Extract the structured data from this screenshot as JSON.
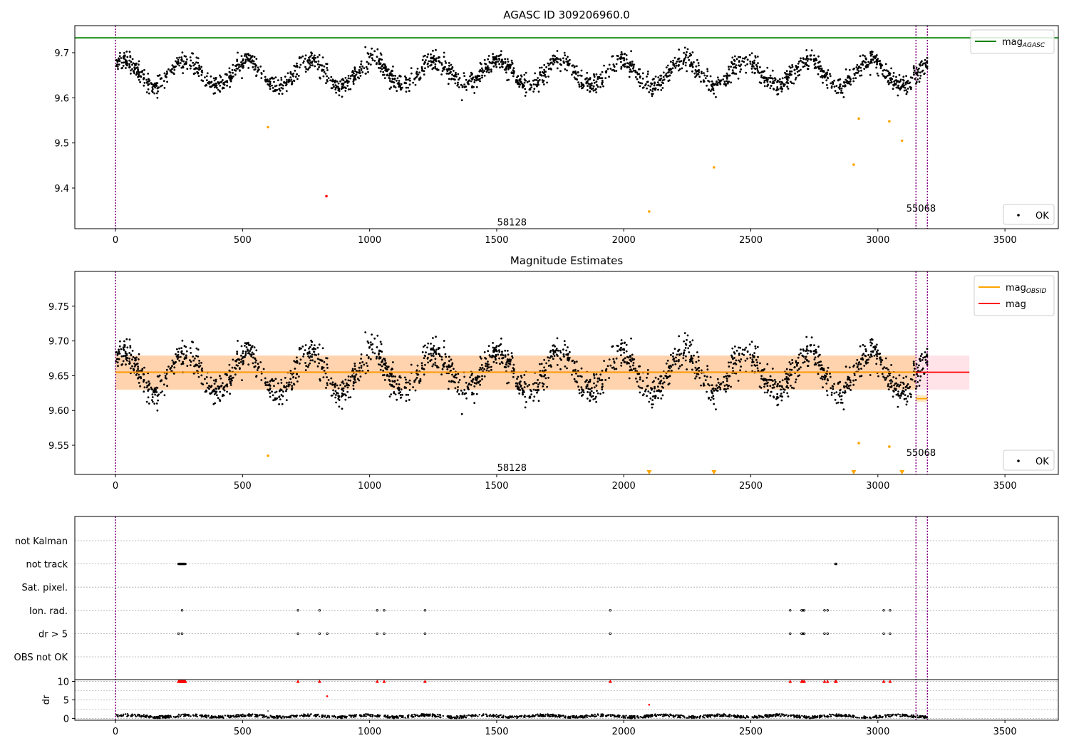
{
  "chart_data": [
    {
      "type": "scatter",
      "title": "AGASC ID 309206960.0",
      "xlim": [
        -160,
        3710
      ],
      "ylim": [
        9.31,
        9.76
      ],
      "xticks": [
        0,
        500,
        1000,
        1500,
        2000,
        2500,
        3000,
        3500
      ],
      "yticks": [
        9.4,
        9.5,
        9.6,
        9.7
      ],
      "ytick_labels": [
        "9.4",
        "9.5",
        "9.6",
        "9.7"
      ],
      "xlabel": "",
      "ylabel": "",
      "grid": false,
      "hlines": [
        {
          "name": "mag_AGASC",
          "y": 9.733,
          "color": "#008000"
        }
      ],
      "vlines": [
        0,
        3150,
        3195
      ],
      "vline_color": "#800080",
      "obsid_labels": [
        {
          "text": "58128",
          "x": 1560,
          "y": 9.325
        },
        {
          "text": "55068",
          "x": 3170,
          "y": 9.356
        }
      ],
      "ok_signal": {
        "mean": 9.655,
        "amplitude": 0.028,
        "period": 245,
        "phase": 215,
        "scatter": 0.011,
        "x_start": 0,
        "x_end": 3195,
        "n": 2200,
        "color": "#000000"
      },
      "extra_points": [
        {
          "x": 600,
          "y": 9.535,
          "color": "#ffa500"
        },
        {
          "x": 830,
          "y": 9.382,
          "color": "#ff0000"
        },
        {
          "x": 2100,
          "y": 9.348,
          "color": "#ffa500"
        },
        {
          "x": 2355,
          "y": 9.446,
          "color": "#ffa500"
        },
        {
          "x": 2905,
          "y": 9.452,
          "color": "#ffa500"
        },
        {
          "x": 2925,
          "y": 9.554,
          "color": "#ffa500"
        },
        {
          "x": 3045,
          "y": 9.548,
          "color": "#ffa500"
        },
        {
          "x": 3095,
          "y": 9.505,
          "color": "#ffa500"
        }
      ],
      "legend": {
        "placement": "top-right",
        "entries": [
          {
            "label": "mag",
            "sub": "AGASC",
            "color": "#008000"
          }
        ]
      },
      "legend2": {
        "placement": "bottom-right",
        "entries": [
          {
            "label": "OK",
            "color": "#000000"
          }
        ]
      }
    },
    {
      "type": "scatter",
      "title": "Magnitude Estimates",
      "xlim": [
        -160,
        3710
      ],
      "ylim": [
        9.508,
        9.8
      ],
      "xticks": [
        0,
        500,
        1000,
        1500,
        2000,
        2500,
        3000,
        3500
      ],
      "yticks": [
        9.55,
        9.6,
        9.65,
        9.7,
        9.75
      ],
      "ytick_labels": [
        "9.55",
        "9.60",
        "9.65",
        "9.70",
        "9.75"
      ],
      "xlabel": "",
      "ylabel": "",
      "grid": false,
      "vlines": [
        0,
        3150,
        3195
      ],
      "vline_color": "#800080",
      "mag_line": {
        "x_start": 0,
        "x_end": 3195,
        "y": 9.655,
        "color": "#ff0000"
      },
      "mag_band": {
        "x_start": 0,
        "x_end": 3360,
        "y_low": 9.63,
        "y_high": 9.679,
        "color": "#ffc0cb"
      },
      "obsid_segments": [
        {
          "x_start": 0,
          "x_end": 3150,
          "y": 9.655,
          "low": 9.63,
          "high": 9.679
        },
        {
          "x_start": 3150,
          "x_end": 3195,
          "y": 9.617,
          "low": 9.612,
          "high": 9.622
        }
      ],
      "obsid_color": "#ffa500",
      "obsid_labels": [
        {
          "text": "58128",
          "x": 1560,
          "y": 9.518
        },
        {
          "text": "55068",
          "x": 3170,
          "y": 9.54
        }
      ],
      "ok_signal": {
        "mean": 9.655,
        "amplitude": 0.028,
        "period": 245,
        "phase": 215,
        "scatter": 0.011,
        "x_start": 0,
        "x_end": 3195,
        "n": 2200,
        "color": "#000000"
      },
      "extra_points": [
        {
          "x": 600,
          "y": 9.535,
          "color": "#ffa500"
        },
        {
          "x": 2925,
          "y": 9.553,
          "color": "#ffa500"
        },
        {
          "x": 3045,
          "y": 9.548,
          "color": "#ffa500"
        }
      ],
      "offscale_markers": [
        2100,
        2355,
        2905,
        3095
      ],
      "legend": {
        "placement": "top-right",
        "entries": [
          {
            "label": "mag",
            "sub": "OBSID",
            "color": "#ffa500"
          },
          {
            "label": "mag",
            "sub": "",
            "color": "#ff0000"
          }
        ]
      },
      "legend2": {
        "placement": "bottom-right",
        "entries": [
          {
            "label": "OK",
            "color": "#000000"
          }
        ]
      }
    },
    {
      "type": "scatter",
      "title": "",
      "xlim": [
        -160,
        3710
      ],
      "xticks": [
        0,
        500,
        1000,
        1500,
        2000,
        2500,
        3000,
        3500
      ],
      "vlines": [
        0,
        3150,
        3195
      ],
      "vline_color": "#800080",
      "flag_rows": [
        "not Kalman",
        "not track",
        "Sat. pixel.",
        "Ion. rad.",
        "dr > 5",
        "OBS not OK"
      ],
      "flags": {
        "not track": [
          248,
          251,
          254,
          257,
          260,
          263,
          266,
          269,
          272,
          275,
          2833,
          2836
        ],
        "Ion. rad.": [
          262,
          718,
          803,
          1030,
          1057,
          1218,
          1947,
          2655,
          2700,
          2705,
          2710,
          2790,
          2802,
          3023,
          3048
        ],
        "dr > 5": [
          248,
          262,
          718,
          803,
          833,
          1030,
          1057,
          1218,
          1947,
          2655,
          2700,
          2705,
          2710,
          2790,
          2802,
          3023,
          3048
        ]
      },
      "dr_ylim": [
        -0.5,
        10.5
      ],
      "dr_yticks": [
        0,
        5,
        10
      ],
      "dr_ylabel": "dr",
      "dr_noise": {
        "mean": 0.6,
        "amplitude": 0.35,
        "max": 1.3,
        "x_start": 0,
        "x_end": 3195,
        "n": 1400,
        "color": "#000000"
      },
      "dr_clipped": [
        248,
        251,
        254,
        257,
        260,
        263,
        266,
        269,
        272,
        275,
        718,
        803,
        1030,
        1057,
        1218,
        1947,
        2655,
        2700,
        2705,
        2710,
        2790,
        2802,
        2833,
        2836,
        3023,
        3048
      ],
      "dr_clipped_color": "#ff0000",
      "dr_extra": [
        {
          "x": 833,
          "y": 6.0,
          "color": "#ff0000"
        },
        {
          "x": 2100,
          "y": 3.7,
          "color": "#ff0000"
        },
        {
          "x": 600,
          "y": 2.0,
          "color": "#808080"
        }
      ]
    }
  ]
}
